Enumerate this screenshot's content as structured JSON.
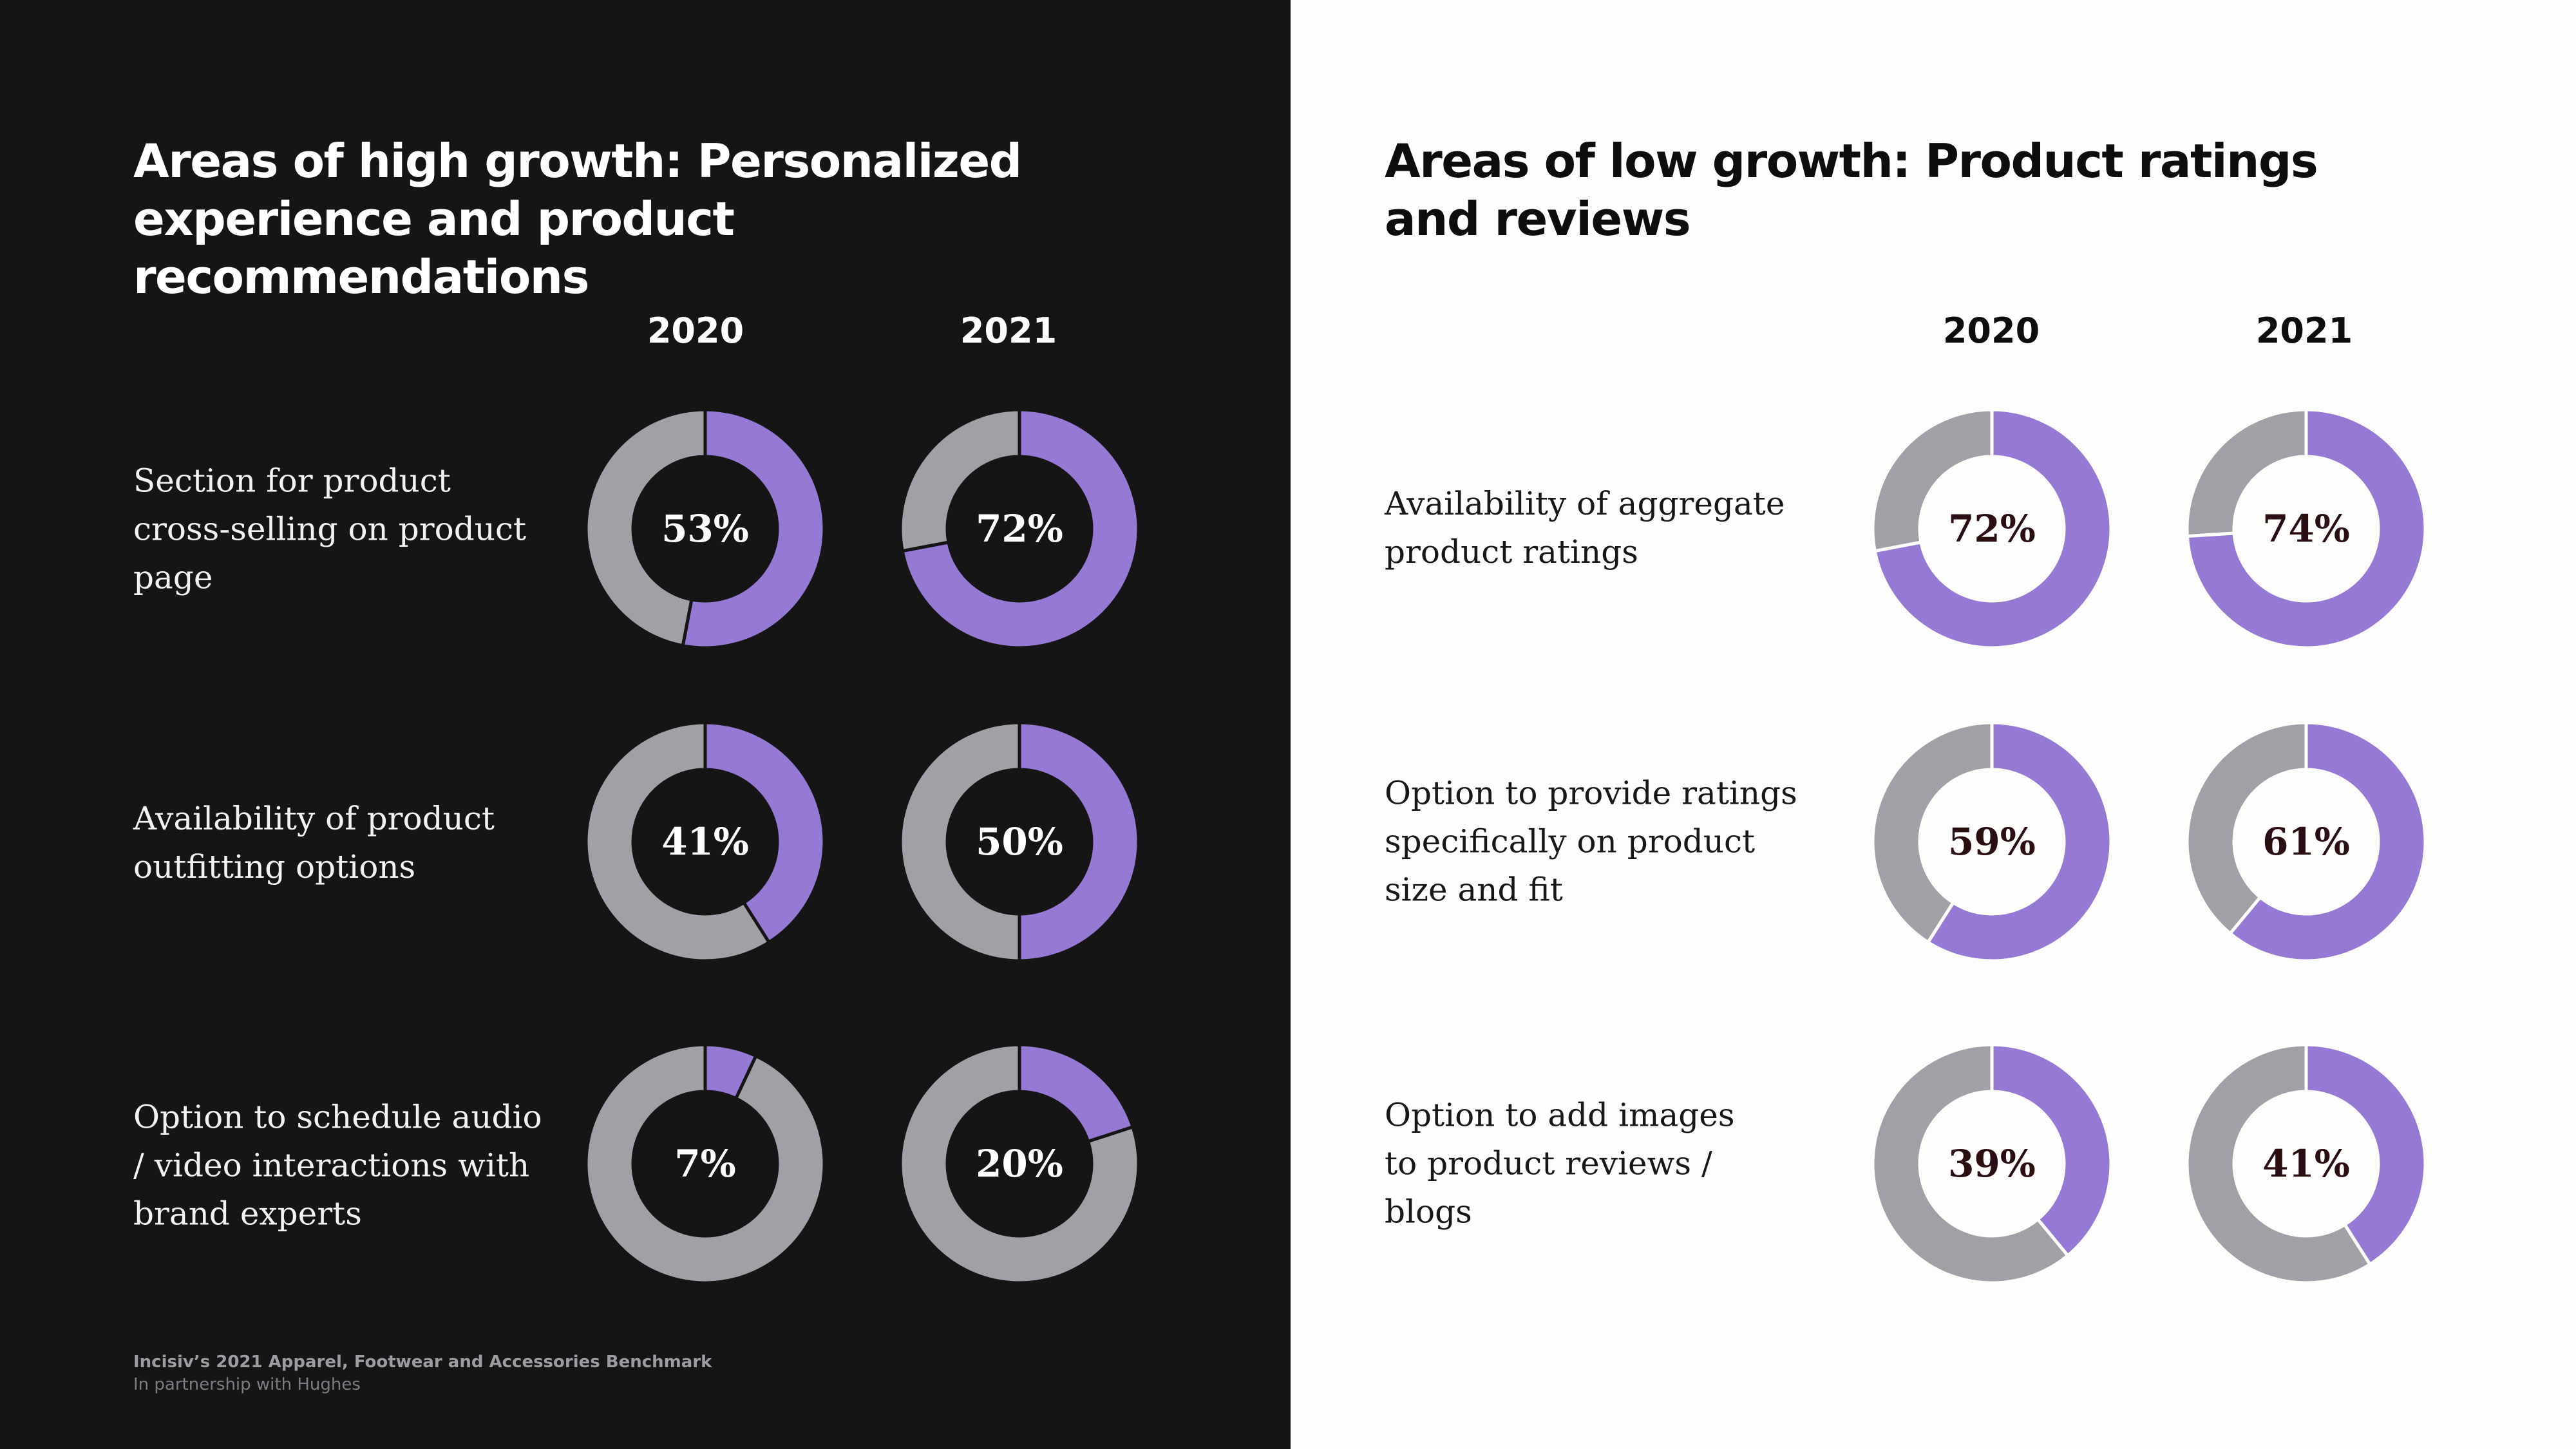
{
  "colors": {
    "accent": "#9679d4",
    "remainder": "#a1a0a6",
    "dark_background": "#161516",
    "light_background": "#fdfdfb"
  },
  "footer": {
    "title": "Incisiv’s 2021 Apparel, Footwear and Accessories Benchmark",
    "subtitle": "In partnership with Hughes"
  },
  "chart_data": [
    {
      "type": "donut",
      "title": "Areas of high growth: Personalized experience and product recommendations",
      "columns": [
        "2020",
        "2021"
      ],
      "rows": [
        {
          "label": "Section for product cross-selling on product page",
          "values": [
            53,
            72
          ],
          "value_labels": [
            "53%",
            "72%"
          ]
        },
        {
          "label": "Availability of product outfitting options",
          "values": [
            41,
            50
          ],
          "value_labels": [
            "41%",
            "50%"
          ]
        },
        {
          "label": "Option to schedule audio / video interactions with brand experts",
          "values": [
            7,
            20
          ],
          "value_labels": [
            "7%",
            "20%"
          ]
        }
      ],
      "unit": "%",
      "max": 100
    },
    {
      "type": "donut",
      "title": "Areas of low growth: Product ratings and reviews",
      "columns": [
        "2020",
        "2021"
      ],
      "rows": [
        {
          "label": "Availability of aggregate product ratings",
          "values": [
            72,
            74
          ],
          "value_labels": [
            "72%",
            "74%"
          ]
        },
        {
          "label": "Option to provide ratings specifically on product size and fit",
          "values": [
            59,
            61
          ],
          "value_labels": [
            "59%",
            "61%"
          ]
        },
        {
          "label": "Option to add images to product reviews / blogs",
          "values": [
            39,
            41
          ],
          "value_labels": [
            "39%",
            "41%"
          ]
        }
      ],
      "unit": "%",
      "max": 100
    }
  ]
}
